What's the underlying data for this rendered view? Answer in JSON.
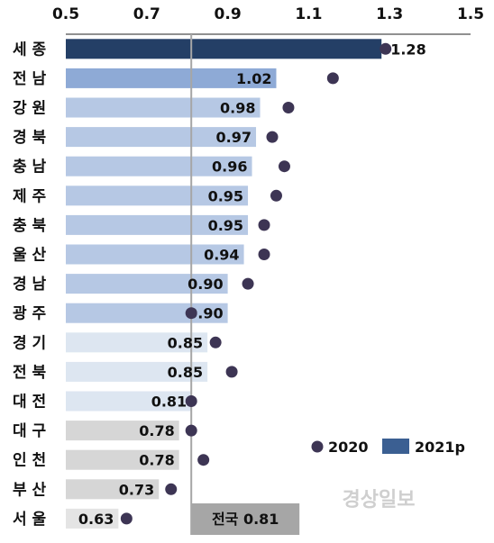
{
  "chart_data": {
    "type": "bar",
    "orientation": "horizontal",
    "xlim": [
      0.5,
      1.5
    ],
    "xticks": [
      "0.5",
      "0.7",
      "0.9",
      "1.1",
      "1.3",
      "1.5"
    ],
    "grid": false,
    "legend_position": "bottom-right",
    "categories": [
      "세 종",
      "전 남",
      "강 원",
      "경 북",
      "충 남",
      "제 주",
      "충 북",
      "울 산",
      "경 남",
      "광 주",
      "경 기",
      "전 북",
      "대 전",
      "대 구",
      "인 천",
      "부 산",
      "서 울"
    ],
    "series": [
      {
        "name": "2021p",
        "kind": "bar",
        "values": [
          1.28,
          1.02,
          0.98,
          0.97,
          0.96,
          0.95,
          0.95,
          0.94,
          0.9,
          0.9,
          0.85,
          0.85,
          0.81,
          0.78,
          0.78,
          0.73,
          0.63
        ],
        "labels": [
          "1.28",
          "1.02",
          "0.98",
          "0.97",
          "0.96",
          "0.95",
          "0.95",
          "0.94",
          "0.90",
          "0.90",
          "0.85",
          "0.85",
          "0.81",
          "0.78",
          "0.78",
          "0.73",
          "0.63"
        ]
      },
      {
        "name": "2020",
        "kind": "dot",
        "values": [
          1.29,
          1.16,
          1.05,
          1.01,
          1.04,
          1.02,
          0.99,
          0.99,
          0.95,
          0.81,
          0.87,
          0.91,
          0.81,
          0.81,
          0.84,
          0.76,
          0.65
        ]
      }
    ],
    "reference_line": {
      "value": 0.81,
      "label": "전국 0.81"
    },
    "bar_colors": [
      "#243f66",
      "#8eaad6",
      "#b6c8e4",
      "#b6c8e4",
      "#b6c8e4",
      "#b6c8e4",
      "#b6c8e4",
      "#b6c8e4",
      "#b6c8e4",
      "#b6c8e4",
      "#dde6f1",
      "#dde6f1",
      "#dde6f1",
      "#d6d6d6",
      "#d6d6d6",
      "#d6d6d6",
      "#e4e4e4"
    ],
    "dot_color": "#3d3554",
    "legend_bar_color": "#3b5f92",
    "reference_color": "#a6a6a6"
  },
  "watermark": "경상일보"
}
